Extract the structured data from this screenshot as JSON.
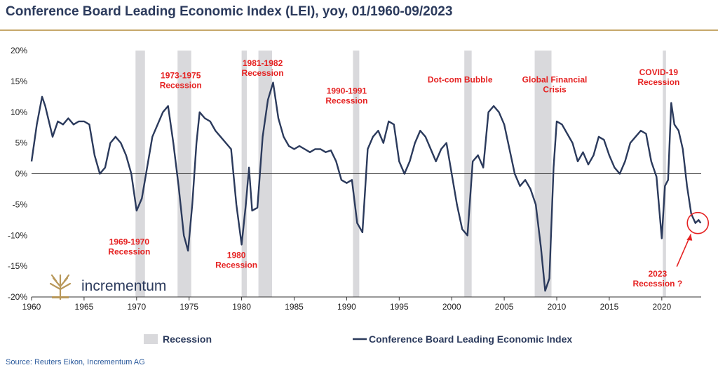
{
  "title": "Conference Board Leading Economic Index (LEI), yoy, 01/1960-09/2023",
  "source": "Source: Reuters Eikon, Incrementum AG",
  "logo_text": "incrementum",
  "colors": {
    "line": "#2b3a5c",
    "recession": "#d9d9dc",
    "annotation": "#e52222",
    "rule": "#c6a86b"
  },
  "legend": {
    "recession_label": "Recession",
    "line_label": "Conference Board Leading Economic Index"
  },
  "chart_data": {
    "type": "line",
    "xlim": [
      1960,
      2023.75
    ],
    "ylim": [
      -20,
      20
    ],
    "yticks": [
      20,
      15,
      10,
      5,
      0,
      -5,
      -10,
      -15,
      -20
    ],
    "ytick_labels": [
      "20%",
      "15%",
      "10%",
      "5%",
      "0%",
      "-5%",
      "-10%",
      "-15%",
      "-20%"
    ],
    "xticks": [
      1960,
      1965,
      1970,
      1975,
      1980,
      1985,
      1990,
      1995,
      2000,
      2005,
      2010,
      2015,
      2020
    ],
    "xtick_labels": [
      "1960",
      "1965",
      "1970",
      "1975",
      "1980",
      "1985",
      "1990",
      "1995",
      "2000",
      "2005",
      "2010",
      "2015",
      "2020"
    ],
    "recessions": [
      [
        1969.9,
        1970.8
      ],
      [
        1973.9,
        1975.2
      ],
      [
        1980.0,
        1980.5
      ],
      [
        1981.6,
        1982.9
      ],
      [
        1990.6,
        1991.2
      ],
      [
        2001.2,
        2001.9
      ],
      [
        2007.9,
        2009.5
      ],
      [
        2020.1,
        2020.4
      ]
    ],
    "annotations": [
      {
        "lines": [
          "1973-1975",
          "Recession"
        ],
        "x": 1974.2,
        "y": 15.5
      },
      {
        "lines": [
          "1981-1982",
          "Recession"
        ],
        "x": 1982.0,
        "y": 17.5
      },
      {
        "lines": [
          "1990-1991",
          "Recession"
        ],
        "x": 1990.0,
        "y": 13.0
      },
      {
        "lines": [
          "Dot-com Bubble"
        ],
        "x": 2000.8,
        "y": 14.8
      },
      {
        "lines": [
          "Global Financial",
          "Crisis"
        ],
        "x": 2009.8,
        "y": 14.8
      },
      {
        "lines": [
          "COVID-19",
          "Recession"
        ],
        "x": 2019.7,
        "y": 16.0
      },
      {
        "lines": [
          "1969-1970",
          "Recession"
        ],
        "x": 1969.3,
        "y": -11.5
      },
      {
        "lines": [
          "1980",
          "Recession"
        ],
        "x": 1979.5,
        "y": -13.7
      },
      {
        "lines": [
          "2023",
          "Recession ?"
        ],
        "x": 2019.6,
        "y": -16.7
      }
    ],
    "series": [
      {
        "name": "Conference Board Leading Economic Index",
        "x": [
          1960.0,
          1960.5,
          1961.0,
          1961.3,
          1962.0,
          1962.5,
          1963.0,
          1963.5,
          1964.0,
          1964.5,
          1965.0,
          1965.5,
          1966.0,
          1966.5,
          1967.0,
          1967.5,
          1968.0,
          1968.5,
          1969.0,
          1969.5,
          1970.0,
          1970.5,
          1971.0,
          1971.5,
          1972.0,
          1972.5,
          1973.0,
          1973.5,
          1974.0,
          1974.5,
          1974.9,
          1975.3,
          1975.7,
          1976.0,
          1976.5,
          1977.0,
          1977.5,
          1978.0,
          1978.5,
          1979.0,
          1979.5,
          1980.0,
          1980.4,
          1980.7,
          1981.0,
          1981.5,
          1982.0,
          1982.5,
          1983.0,
          1983.5,
          1984.0,
          1984.5,
          1985.0,
          1985.5,
          1986.0,
          1986.5,
          1987.0,
          1987.5,
          1988.0,
          1988.5,
          1989.0,
          1989.5,
          1990.0,
          1990.5,
          1991.0,
          1991.5,
          1992.0,
          1992.5,
          1993.0,
          1993.5,
          1994.0,
          1994.5,
          1995.0,
          1995.5,
          1996.0,
          1996.5,
          1997.0,
          1997.5,
          1998.0,
          1998.5,
          1999.0,
          1999.5,
          2000.0,
          2000.5,
          2001.0,
          2001.5,
          2002.0,
          2002.5,
          2003.0,
          2003.5,
          2004.0,
          2004.5,
          2005.0,
          2005.5,
          2006.0,
          2006.5,
          2007.0,
          2007.5,
          2008.0,
          2008.5,
          2008.9,
          2009.3,
          2009.7,
          2010.0,
          2010.5,
          2011.0,
          2011.5,
          2012.0,
          2012.5,
          2013.0,
          2013.5,
          2014.0,
          2014.5,
          2015.0,
          2015.5,
          2016.0,
          2016.5,
          2017.0,
          2017.5,
          2018.0,
          2018.5,
          2019.0,
          2019.5,
          2020.0,
          2020.3,
          2020.6,
          2020.9,
          2021.2,
          2021.6,
          2022.0,
          2022.4,
          2022.8,
          2023.2,
          2023.5,
          2023.7
        ],
        "y": [
          2,
          8,
          12.5,
          11,
          6,
          8.5,
          8,
          9,
          8,
          8.5,
          8.5,
          8,
          3,
          0,
          1,
          5,
          6,
          5,
          3,
          0,
          -6,
          -4,
          1,
          6,
          8,
          10,
          11,
          5,
          -2,
          -10,
          -12.5,
          -5,
          5,
          10,
          9,
          8.5,
          7,
          6,
          5,
          4,
          -5,
          -11.5,
          -5,
          1,
          -6,
          -5.5,
          6,
          12,
          14.8,
          9,
          6,
          4.5,
          4,
          4.5,
          4,
          3.5,
          4,
          4,
          3.5,
          3.8,
          2,
          -1,
          -1.5,
          -1,
          -8,
          -9.5,
          4,
          6,
          7,
          5,
          8.5,
          8,
          2,
          0,
          2,
          5,
          7,
          6,
          4,
          2,
          4,
          5,
          0,
          -5,
          -9,
          -10,
          2,
          3,
          1,
          10,
          11,
          10,
          8,
          4,
          0,
          -2,
          -1,
          -2.5,
          -5,
          -12,
          -19,
          -17,
          1,
          8.5,
          8,
          6.5,
          5,
          2,
          3.5,
          1.5,
          3,
          6,
          5.5,
          3,
          1,
          0,
          2,
          5,
          6,
          7,
          6.5,
          2,
          -0.5,
          -10.5,
          -2,
          -1,
          11.5,
          8,
          7,
          4,
          -2,
          -6.5,
          -8,
          -7.5,
          -8
        ]
      }
    ]
  }
}
